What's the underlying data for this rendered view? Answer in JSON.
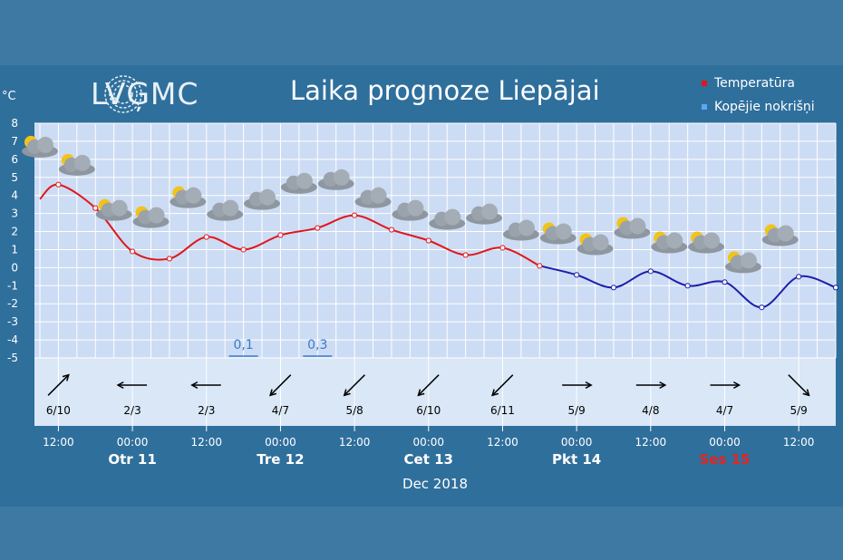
{
  "header": {
    "logo_text": "LVĢMC",
    "title": "Laika prognoze Liepājai"
  },
  "legend": [
    {
      "label": "Temperatūra",
      "color": "#e0161b"
    },
    {
      "label": "Kopējie nokrišņi",
      "color": "#5aa9f0"
    }
  ],
  "colors": {
    "temp_above_zero": "#e0161b",
    "temp_below_zero": "#1e1ea8",
    "plot_bg": "#ccdcf4",
    "wind_bg": "#d9e7f7"
  },
  "chart_data": {
    "type": "line",
    "y_unit": "°C",
    "ylim": [
      -5,
      8
    ],
    "y_ticks": [
      8,
      7,
      6,
      5,
      4,
      3,
      2,
      1,
      0,
      -1,
      -2,
      -3,
      -4,
      -5
    ],
    "grid": true,
    "legend_position": "top-right",
    "x_hours_start": "2018-12-10 09:00",
    "x_hours_end": "2018-12-15 18:00",
    "temperature": [
      {
        "t": "2018-12-10 09:00",
        "y": 3.8
      },
      {
        "t": "2018-12-10 12:00",
        "y": 4.6
      },
      {
        "t": "2018-12-10 18:00",
        "y": 3.3
      },
      {
        "t": "2018-12-11 00:00",
        "y": 0.9
      },
      {
        "t": "2018-12-11 06:00",
        "y": 0.5
      },
      {
        "t": "2018-12-11 12:00",
        "y": 1.7
      },
      {
        "t": "2018-12-11 18:00",
        "y": 1.0
      },
      {
        "t": "2018-12-12 00:00",
        "y": 1.8
      },
      {
        "t": "2018-12-12 06:00",
        "y": 2.2
      },
      {
        "t": "2018-12-12 12:00",
        "y": 2.9
      },
      {
        "t": "2018-12-12 18:00",
        "y": 2.1
      },
      {
        "t": "2018-12-13 00:00",
        "y": 1.5
      },
      {
        "t": "2018-12-13 06:00",
        "y": 0.7
      },
      {
        "t": "2018-12-13 12:00",
        "y": 1.1
      },
      {
        "t": "2018-12-13 18:00",
        "y": 0.1
      },
      {
        "t": "2018-12-14 00:00",
        "y": -0.4
      },
      {
        "t": "2018-12-14 06:00",
        "y": -1.1
      },
      {
        "t": "2018-12-14 12:00",
        "y": -0.2
      },
      {
        "t": "2018-12-14 18:00",
        "y": -1.0
      },
      {
        "t": "2018-12-15 00:00",
        "y": -0.8
      },
      {
        "t": "2018-12-15 06:00",
        "y": -2.2
      },
      {
        "t": "2018-12-15 12:00",
        "y": -0.5
      },
      {
        "t": "2018-12-15 18:00",
        "y": -1.1
      }
    ],
    "precipitation": [
      {
        "t": "2018-12-11 18:00",
        "label": "0,1"
      },
      {
        "t": "2018-12-12 06:00",
        "label": "0,3"
      }
    ],
    "weather_icons": [
      {
        "t": "2018-12-10 09:00",
        "y": 6.6,
        "icon": "partly-cloudy-icon"
      },
      {
        "t": "2018-12-10 15:00",
        "y": 5.6,
        "icon": "partly-cloudy-icon"
      },
      {
        "t": "2018-12-10 21:00",
        "y": 3.1,
        "icon": "partly-cloudy-icon"
      },
      {
        "t": "2018-12-11 03:00",
        "y": 2.7,
        "icon": "partly-cloudy-icon"
      },
      {
        "t": "2018-12-11 09:00",
        "y": 3.8,
        "icon": "partly-cloudy-icon"
      },
      {
        "t": "2018-12-11 15:00",
        "y": 3.1,
        "icon": "rain-cloud-icon"
      },
      {
        "t": "2018-12-11 21:00",
        "y": 3.7,
        "icon": "cloud-icon"
      },
      {
        "t": "2018-12-12 03:00",
        "y": 4.6,
        "icon": "rain-cloud-icon"
      },
      {
        "t": "2018-12-12 09:00",
        "y": 4.8,
        "icon": "cloud-icon"
      },
      {
        "t": "2018-12-12 15:00",
        "y": 3.8,
        "icon": "cloud-icon"
      },
      {
        "t": "2018-12-12 21:00",
        "y": 3.1,
        "icon": "cloud-icon"
      },
      {
        "t": "2018-12-13 03:00",
        "y": 2.6,
        "icon": "cloud-icon"
      },
      {
        "t": "2018-12-13 09:00",
        "y": 2.9,
        "icon": "cloud-icon"
      },
      {
        "t": "2018-12-13 15:00",
        "y": 2.0,
        "icon": "cloud-icon"
      },
      {
        "t": "2018-12-13 21:00",
        "y": 1.8,
        "icon": "partly-cloudy-icon"
      },
      {
        "t": "2018-12-14 03:00",
        "y": 1.2,
        "icon": "partly-cloudy-icon"
      },
      {
        "t": "2018-12-14 09:00",
        "y": 2.1,
        "icon": "partly-cloudy-icon"
      },
      {
        "t": "2018-12-14 15:00",
        "y": 1.3,
        "icon": "partly-cloudy-icon"
      },
      {
        "t": "2018-12-14 21:00",
        "y": 1.3,
        "icon": "partly-cloudy-icon"
      },
      {
        "t": "2018-12-15 03:00",
        "y": 0.2,
        "icon": "partly-cloudy-icon"
      },
      {
        "t": "2018-12-15 09:00",
        "y": 1.7,
        "icon": "partly-cloudy-icon"
      }
    ]
  },
  "wind": [
    {
      "t": "2018-12-10 12:00",
      "label": "6/10",
      "direction": "SW",
      "icon": "wind-arrow-icon"
    },
    {
      "t": "2018-12-11 00:00",
      "label": "2/3",
      "direction": "E",
      "icon": "wind-arrow-icon"
    },
    {
      "t": "2018-12-11 12:00",
      "label": "2/3",
      "direction": "E",
      "icon": "wind-arrow-icon"
    },
    {
      "t": "2018-12-12 00:00",
      "label": "4/7",
      "direction": "NE",
      "icon": "wind-arrow-icon"
    },
    {
      "t": "2018-12-12 12:00",
      "label": "5/8",
      "direction": "NE",
      "icon": "wind-arrow-icon"
    },
    {
      "t": "2018-12-13 00:00",
      "label": "6/10",
      "direction": "NE",
      "icon": "wind-arrow-icon"
    },
    {
      "t": "2018-12-13 12:00",
      "label": "6/11",
      "direction": "NE",
      "icon": "wind-arrow-icon"
    },
    {
      "t": "2018-12-14 00:00",
      "label": "5/9",
      "direction": "W",
      "icon": "wind-arrow-icon"
    },
    {
      "t": "2018-12-14 12:00",
      "label": "4/8",
      "direction": "W",
      "icon": "wind-arrow-icon"
    },
    {
      "t": "2018-12-15 00:00",
      "label": "4/7",
      "direction": "W",
      "icon": "wind-arrow-icon"
    },
    {
      "t": "2018-12-15 12:00",
      "label": "5/9",
      "direction": "NW",
      "icon": "wind-arrow-icon"
    }
  ],
  "time_axis": {
    "ticks": [
      {
        "t": "2018-12-10 12:00",
        "label": "12:00"
      },
      {
        "t": "2018-12-11 00:00",
        "label": "00:00"
      },
      {
        "t": "2018-12-11 12:00",
        "label": "12:00"
      },
      {
        "t": "2018-12-12 00:00",
        "label": "00:00"
      },
      {
        "t": "2018-12-12 12:00",
        "label": "12:00"
      },
      {
        "t": "2018-12-13 00:00",
        "label": "00:00"
      },
      {
        "t": "2018-12-13 12:00",
        "label": "12:00"
      },
      {
        "t": "2018-12-14 00:00",
        "label": "00:00"
      },
      {
        "t": "2018-12-14 12:00",
        "label": "12:00"
      },
      {
        "t": "2018-12-15 00:00",
        "label": "00:00"
      },
      {
        "t": "2018-12-15 12:00",
        "label": "12:00"
      }
    ],
    "days": [
      {
        "t": "2018-12-11 00:00",
        "label": "Otr 11",
        "weekend": false
      },
      {
        "t": "2018-12-12 00:00",
        "label": "Tre 12",
        "weekend": false
      },
      {
        "t": "2018-12-13 00:00",
        "label": "Cet 13",
        "weekend": false
      },
      {
        "t": "2018-12-14 00:00",
        "label": "Pkt 14",
        "weekend": false
      },
      {
        "t": "2018-12-15 00:00",
        "label": "Ses 15",
        "weekend": true
      }
    ],
    "month": "Dec 2018"
  }
}
